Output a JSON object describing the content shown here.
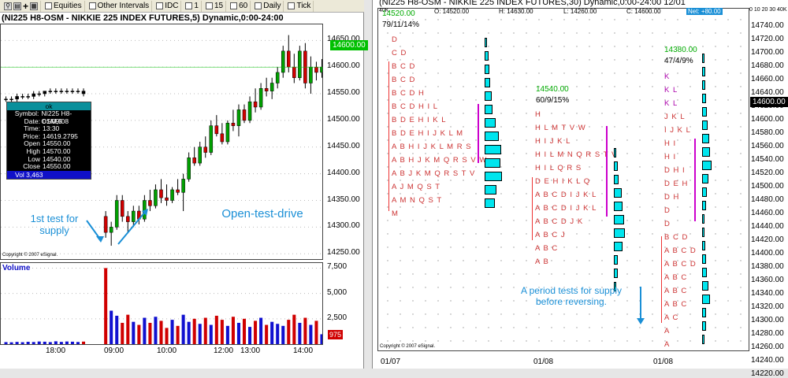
{
  "left": {
    "toolbar": {
      "equities": "Equities",
      "other_intervals": "Other Intervals",
      "idc": "IDC",
      "one": "1",
      "fivteen": "15",
      "sixty": "60",
      "daily": "Daily",
      "tick": "Tick"
    },
    "title": "(NI225 H8-OSM - NIKKIE 225 INDEX FUTURES,5) Dynamic,0:00-24:00",
    "price_tag": "14600.00",
    "volume_label": "Volume",
    "volume_tag": "975",
    "copyright": "Copyright © 2007 eSignal.",
    "y_axis": [
      "14650.00",
      "14600.00",
      "14550.00",
      "14500.00",
      "14450.00",
      "14400.00",
      "14350.00",
      "14300.00",
      "14250.00"
    ],
    "vol_axis": [
      "7,500",
      "5,000",
      "2,500"
    ],
    "x_axis": [
      "18:00",
      "09:00",
      "10:00",
      "12:00",
      "13:00",
      "14:00"
    ],
    "infobox": {
      "header": "ok",
      "rows": [
        {
          "k": "Symbol:",
          "v": "NI225 H8-OSM,5"
        },
        {
          "k": "Date:",
          "v": "01/09/08"
        },
        {
          "k": "Time:",
          "v": "13:30"
        },
        {
          "k": "Price:",
          "v": "14619.2795"
        },
        {
          "k": "Open",
          "v": "14550.00"
        },
        {
          "k": "High",
          "v": "14570.00"
        },
        {
          "k": "Low",
          "v": "14540.00"
        },
        {
          "k": "Close",
          "v": "14550.00"
        }
      ],
      "vol": "Vol 3,463"
    },
    "annotations": {
      "first_test": "1st test for supply",
      "open_test_drive": "Open-test-drive"
    },
    "chart_data": {
      "type": "candlestick",
      "title": "(NI225 H8-OSM - NIKKIE 225 INDEX FUTURES,5) Dynamic,0:00-24:00",
      "ylim": [
        14240,
        14680
      ],
      "candles": [
        [
          14540,
          14545,
          14535,
          14540
        ],
        [
          14540,
          14545,
          14535,
          14540
        ],
        [
          14540,
          14550,
          14535,
          14545
        ],
        [
          14545,
          14550,
          14540,
          14545
        ],
        [
          14545,
          14550,
          14540,
          14545
        ],
        [
          14545,
          14555,
          14540,
          14550
        ],
        [
          14550,
          14555,
          14545,
          14550
        ],
        [
          14550,
          14555,
          14545,
          14555
        ],
        [
          14555,
          14560,
          14550,
          14555
        ],
        [
          14555,
          14560,
          14550,
          14555
        ],
        [
          14555,
          14560,
          14550,
          14555
        ],
        [
          14555,
          14560,
          14550,
          14555
        ],
        [
          14555,
          14560,
          14550,
          14555
        ],
        [
          14555,
          14560,
          14550,
          14555
        ],
        [
          14555,
          14560,
          14545,
          14550
        ],
        [
          14320,
          14330,
          14280,
          14290
        ],
        [
          14290,
          14310,
          14265,
          14300
        ],
        [
          14300,
          14360,
          14295,
          14350
        ],
        [
          14350,
          14360,
          14310,
          14320
        ],
        [
          14320,
          14330,
          14290,
          14310
        ],
        [
          14310,
          14340,
          14300,
          14330
        ],
        [
          14330,
          14340,
          14305,
          14315
        ],
        [
          14315,
          14360,
          14310,
          14350
        ],
        [
          14350,
          14370,
          14330,
          14340
        ],
        [
          14340,
          14380,
          14335,
          14370
        ],
        [
          14370,
          14390,
          14345,
          14355
        ],
        [
          14355,
          14380,
          14340,
          14350
        ],
        [
          14350,
          14375,
          14345,
          14370
        ],
        [
          14370,
          14390,
          14360,
          14365
        ],
        [
          14365,
          14400,
          14330,
          14390
        ],
        [
          14390,
          14440,
          14385,
          14430
        ],
        [
          14430,
          14450,
          14415,
          14420
        ],
        [
          14420,
          14460,
          14415,
          14450
        ],
        [
          14450,
          14470,
          14430,
          14440
        ],
        [
          14440,
          14500,
          14435,
          14490
        ],
        [
          14490,
          14510,
          14470,
          14475
        ],
        [
          14475,
          14495,
          14455,
          14460
        ],
        [
          14460,
          14500,
          14455,
          14495
        ],
        [
          14495,
          14520,
          14480,
          14490
        ],
        [
          14490,
          14530,
          14470,
          14520
        ],
        [
          14520,
          14530,
          14495,
          14500
        ],
        [
          14500,
          14545,
          14495,
          14535
        ],
        [
          14535,
          14560,
          14515,
          14525
        ],
        [
          14525,
          14570,
          14520,
          14560
        ],
        [
          14560,
          14580,
          14545,
          14555
        ],
        [
          14555,
          14580,
          14540,
          14570
        ],
        [
          14570,
          14600,
          14560,
          14590
        ],
        [
          14590,
          14640,
          14580,
          14630
        ],
        [
          14630,
          14660,
          14590,
          14600
        ],
        [
          14600,
          14625,
          14570,
          14580
        ],
        [
          14580,
          14640,
          14575,
          14630
        ],
        [
          14630,
          14645,
          14560,
          14570
        ],
        [
          14570,
          14620,
          14550,
          14600
        ],
        [
          14600,
          14610,
          14575,
          14590
        ],
        [
          14590,
          14615,
          14580,
          14600
        ]
      ],
      "volume": [
        200,
        180,
        220,
        190,
        230,
        210,
        260,
        240,
        200,
        280,
        220,
        260,
        240,
        210,
        250,
        7500,
        3300,
        2800,
        2100,
        2900,
        2200,
        1900,
        2600,
        2100,
        2700,
        2300,
        1600,
        2400,
        1800,
        2900,
        2200,
        2500,
        2000,
        2600,
        1900,
        2800,
        2400,
        1800,
        2700,
        2100,
        2500,
        1700,
        2300,
        2600,
        1900,
        2200,
        2000,
        1800,
        2400,
        2900,
        2100,
        2600,
        1900,
        2300,
        975
      ]
    }
  },
  "right": {
    "title": "(NI225 H8-OSM - NIKKIE 225 INDEX FUTURES,30) Dynamic,0:00-24:00 12/01",
    "stats": {
      "o": "O: 14520.00",
      "h": "H: 14630.00",
      "l": "L: 14260.00",
      "c": "C: 14600.00",
      "net": "Net: +80.00"
    },
    "axis_top": "40K",
    "axis_top_right": "0 10 20 30 40K",
    "y_axis": [
      "14740.00",
      "14720.00",
      "14700.00",
      "14680.00",
      "14660.00",
      "14640.00",
      "14620.00",
      "14600.00",
      "14580.00",
      "14560.00",
      "14540.00",
      "14520.00",
      "14500.00",
      "14480.00",
      "14460.00",
      "14440.00",
      "14420.00",
      "14400.00",
      "14380.00",
      "14360.00",
      "14340.00",
      "14320.00",
      "14300.00",
      "14280.00",
      "14260.00",
      "14240.00",
      "14220.00"
    ],
    "price_tag": "14600.00",
    "dates": [
      "01/07",
      "01/08",
      "01/08"
    ],
    "copyright": "Copyright © 2007 eSignal.",
    "profiles": [
      {
        "value": "14520.00",
        "tpo": "79/11/14%"
      },
      {
        "value": "14540.00",
        "tpo": "60/9/15%"
      },
      {
        "value": "14380.00",
        "tpo": "47/4/9%"
      }
    ],
    "annotation": "A period tests for supply before reversing.",
    "letters1": [
      {
        "t": "D",
        "c": "#c33"
      },
      {
        "t": "C D",
        "c": "#c33"
      },
      {
        "t": "B C D",
        "c": "#c33"
      },
      {
        "t": "B C D",
        "c": "#c33"
      },
      {
        "t": "B C D H",
        "c": "#c33"
      },
      {
        "t": "B C D H I L",
        "c": "#c33"
      },
      {
        "t": "B D E H I K L",
        "c": "#c33"
      },
      {
        "t": "B D E H I J K L M",
        "c": "#c33"
      },
      {
        "t": "A B H I J K L M R S",
        "c": "#c33"
      },
      {
        "t": "A B H J K M Q R S V W",
        "c": "#c33"
      },
      {
        "t": "A B J K M Q R S T V",
        "c": "#c33"
      },
      {
        "t": "A J M Q S T",
        "c": "#c33"
      },
      {
        "t": "A M N Q S T",
        "c": "#c33"
      },
      {
        "t": "M",
        "c": "#c33"
      }
    ],
    "letters2": [
      {
        "t": "H",
        "c": "#c33"
      },
      {
        "t": "H L M T V W",
        "c": "#c33"
      },
      {
        "t": "H I J K L",
        "c": "#c33"
      },
      {
        "t": "H I L M N Q R S T V",
        "c": "#c33"
      },
      {
        "t": "H I L Q R S",
        "c": "#c33"
      },
      {
        "t": "D E H I K L Q",
        "c": "#c33"
      },
      {
        "t": "A B C D I J K L",
        "c": "#c33"
      },
      {
        "t": "A B C D I J K L",
        "c": "#c33"
      },
      {
        "t": "A B C D J K",
        "c": "#c33"
      },
      {
        "t": "A B C J",
        "c": "#c33"
      },
      {
        "t": "A B C",
        "c": "#c33"
      },
      {
        "t": "A B",
        "c": "#c33"
      }
    ],
    "letters3": [
      {
        "t": "K",
        "c": "#a0a"
      },
      {
        "t": "K L",
        "c": "#a0a"
      },
      {
        "t": "K L",
        "c": "#a0a"
      },
      {
        "t": "J K L",
        "c": "#c33"
      },
      {
        "t": "I J K L",
        "c": "#c33"
      },
      {
        "t": "H I",
        "c": "#c33"
      },
      {
        "t": "H I",
        "c": "#c33"
      },
      {
        "t": "D H I",
        "c": "#c33"
      },
      {
        "t": "D E H",
        "c": "#c33"
      },
      {
        "t": "D H",
        "c": "#c33"
      },
      {
        "t": "D",
        "c": "#c33"
      },
      {
        "t": "D",
        "c": "#c33"
      },
      {
        "t": "B C D",
        "c": "#c33"
      },
      {
        "t": "A B C D",
        "c": "#c33"
      },
      {
        "t": "A B C D",
        "c": "#c33"
      },
      {
        "t": "A B C",
        "c": "#c33"
      },
      {
        "t": "A B C",
        "c": "#c33"
      },
      {
        "t": "A B C",
        "c": "#c33"
      },
      {
        "t": "A C",
        "c": "#c33"
      },
      {
        "t": "A",
        "c": "#c33"
      },
      {
        "t": "A",
        "c": "#c33"
      }
    ],
    "histo1": [
      6,
      10,
      14,
      16,
      20,
      22,
      30,
      40,
      46,
      44,
      48,
      34,
      28
    ],
    "histo2": [
      6,
      10,
      14,
      22,
      24,
      28,
      30,
      24,
      12,
      10,
      6
    ],
    "histo3": [
      6,
      8,
      8,
      10,
      14,
      16,
      20,
      22,
      26,
      18,
      14,
      10,
      6,
      6,
      8,
      12,
      14,
      18,
      22,
      12,
      10,
      6
    ]
  }
}
